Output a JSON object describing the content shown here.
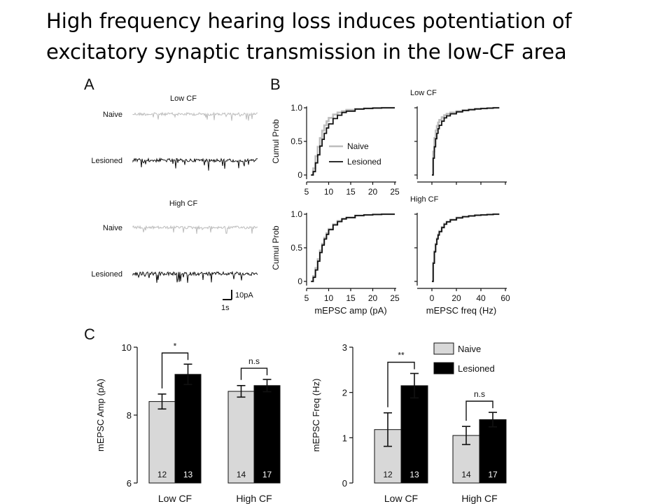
{
  "slide": {
    "title_line1": "High frequency hearing loss induces potentiation of",
    "title_line2": "excitatory synaptic transmission in the low-CF area"
  },
  "colors": {
    "naive": "#bdbdbd",
    "lesioned": "#111111",
    "bar_naive": "#d8d8d8",
    "bar_lesioned": "#000000"
  },
  "panels": {
    "A": {
      "letter": "A",
      "groups": [
        {
          "title": "Low CF",
          "traces": [
            "Naive",
            "Lesioned"
          ]
        },
        {
          "title": "High CF",
          "traces": [
            "Naive",
            "Lesioned"
          ]
        }
      ],
      "scalebar": {
        "amp_label": "10pA",
        "time_label": "1s"
      }
    },
    "B": {
      "letter": "B"
    },
    "C": {
      "letter": "C"
    }
  },
  "chart_data": [
    {
      "type": "line",
      "panel": "B",
      "row_label": "Low CF",
      "xlim": [
        5,
        25
      ],
      "ylim": [
        0,
        1
      ],
      "xticks": [
        5,
        10,
        15,
        20,
        25
      ],
      "yticks": [
        "0",
        "0.5",
        "1.0"
      ],
      "ylabel": "Cumul Prob",
      "legend": [
        "Naive",
        "Lesioned"
      ],
      "legend_position": "lower-right",
      "series": [
        {
          "name": "Naive",
          "color": "naive",
          "x": [
            6,
            6.5,
            7,
            7.5,
            8,
            8.5,
            9,
            9.5,
            10,
            11,
            12,
            13,
            14,
            16,
            18,
            20,
            22,
            24,
            25
          ],
          "y": [
            0,
            0.1,
            0.28,
            0.42,
            0.55,
            0.66,
            0.74,
            0.8,
            0.85,
            0.9,
            0.93,
            0.95,
            0.97,
            0.985,
            0.993,
            0.997,
            1,
            1,
            1
          ]
        },
        {
          "name": "Lesioned",
          "color": "lesioned",
          "x": [
            6,
            6.5,
            7,
            7.5,
            8,
            8.5,
            9,
            9.5,
            10,
            11,
            12,
            13,
            14,
            16,
            18,
            20,
            22,
            24,
            25
          ],
          "y": [
            0,
            0.05,
            0.18,
            0.3,
            0.43,
            0.53,
            0.62,
            0.7,
            0.76,
            0.84,
            0.89,
            0.93,
            0.95,
            0.98,
            0.99,
            0.996,
            1,
            1,
            1
          ]
        }
      ]
    },
    {
      "type": "line",
      "panel": "B",
      "row_label": "Low CF",
      "xlim": [
        0,
        60
      ],
      "ylim": [
        0,
        1
      ],
      "series": [
        {
          "name": "Naive",
          "color": "naive",
          "x": [
            0,
            1,
            2,
            3,
            4,
            5,
            6,
            8,
            10,
            12,
            15,
            20,
            25,
            30,
            35,
            40,
            45,
            50,
            55
          ],
          "y": [
            0,
            0.35,
            0.55,
            0.66,
            0.73,
            0.78,
            0.82,
            0.86,
            0.89,
            0.91,
            0.93,
            0.95,
            0.965,
            0.975,
            0.985,
            0.99,
            0.995,
            1,
            1
          ]
        },
        {
          "name": "Lesioned",
          "color": "lesioned",
          "x": [
            0,
            1,
            2,
            3,
            4,
            5,
            6,
            8,
            10,
            12,
            15,
            20,
            25,
            30,
            35,
            40,
            45,
            50,
            55
          ],
          "y": [
            0,
            0.25,
            0.42,
            0.54,
            0.62,
            0.69,
            0.74,
            0.8,
            0.85,
            0.88,
            0.91,
            0.94,
            0.96,
            0.972,
            0.982,
            0.99,
            0.995,
            1,
            1
          ]
        }
      ]
    },
    {
      "type": "line",
      "panel": "B",
      "row_label": "High CF",
      "xlim": [
        5,
        25
      ],
      "ylim": [
        0,
        1
      ],
      "xticks": [
        5,
        10,
        15,
        20,
        25
      ],
      "yticks": [
        "0",
        "0.5",
        "1.0"
      ],
      "ylabel": "Cumul Prob",
      "xlabel": "mEPSC amp (pA)",
      "series": [
        {
          "name": "Naive",
          "color": "naive",
          "x": [
            6,
            6.5,
            7,
            7.5,
            8,
            8.5,
            9,
            9.5,
            10,
            11,
            12,
            13,
            14,
            16,
            18,
            20,
            22,
            24,
            25
          ],
          "y": [
            0,
            0.08,
            0.2,
            0.33,
            0.46,
            0.56,
            0.65,
            0.72,
            0.78,
            0.85,
            0.9,
            0.93,
            0.95,
            0.98,
            0.99,
            0.996,
            1,
            1,
            1
          ]
        },
        {
          "name": "Lesioned",
          "color": "lesioned",
          "x": [
            6,
            6.5,
            7,
            7.5,
            8,
            8.5,
            9,
            9.5,
            10,
            11,
            12,
            13,
            14,
            16,
            18,
            20,
            22,
            24,
            25
          ],
          "y": [
            0,
            0.06,
            0.17,
            0.3,
            0.43,
            0.54,
            0.63,
            0.7,
            0.77,
            0.84,
            0.89,
            0.93,
            0.95,
            0.98,
            0.99,
            0.996,
            1,
            1,
            1
          ]
        }
      ]
    },
    {
      "type": "line",
      "panel": "B",
      "row_label": "High CF",
      "xlim": [
        0,
        60
      ],
      "ylim": [
        0,
        1
      ],
      "xticks": [
        0,
        20,
        40,
        60
      ],
      "xlabel": "mEPSC freq (Hz)",
      "series": [
        {
          "name": "Naive",
          "color": "naive",
          "x": [
            0,
            1,
            2,
            3,
            4,
            5,
            6,
            8,
            10,
            12,
            15,
            20,
            25,
            30,
            35,
            40,
            45,
            50,
            55
          ],
          "y": [
            0,
            0.28,
            0.45,
            0.56,
            0.64,
            0.7,
            0.75,
            0.81,
            0.86,
            0.89,
            0.92,
            0.95,
            0.965,
            0.975,
            0.985,
            0.99,
            0.995,
            1,
            1
          ]
        },
        {
          "name": "Lesioned",
          "color": "lesioned",
          "x": [
            0,
            1,
            2,
            3,
            4,
            5,
            6,
            8,
            10,
            12,
            15,
            20,
            25,
            30,
            35,
            40,
            45,
            50,
            55
          ],
          "y": [
            0,
            0.27,
            0.44,
            0.55,
            0.63,
            0.69,
            0.74,
            0.8,
            0.85,
            0.885,
            0.915,
            0.945,
            0.962,
            0.974,
            0.984,
            0.99,
            0.995,
            1,
            1
          ]
        }
      ]
    },
    {
      "type": "bar",
      "panel": "C",
      "categories": [
        "Low CF",
        "High CF"
      ],
      "ylabel": "mEPSC Amp (pA)",
      "ylim": [
        6,
        10
      ],
      "yticks": [
        6,
        8,
        10
      ],
      "series": [
        {
          "name": "Naive",
          "values": [
            8.4,
            8.7
          ],
          "errors": [
            0.22,
            0.17
          ],
          "n": [
            "12",
            "14"
          ]
        },
        {
          "name": "Lesioned",
          "values": [
            9.2,
            8.87
          ],
          "errors": [
            0.3,
            0.18
          ],
          "n": [
            "13",
            "17"
          ]
        }
      ],
      "significance": [
        "*",
        "n.s"
      ]
    },
    {
      "type": "bar",
      "panel": "C",
      "categories": [
        "Low CF",
        "High CF"
      ],
      "ylabel": "mEPSC Freq (Hz)",
      "ylim": [
        0,
        3
      ],
      "yticks": [
        0,
        1,
        2,
        3
      ],
      "legend": [
        "Naive",
        "Lesioned"
      ],
      "legend_position": "top-right",
      "series": [
        {
          "name": "Naive",
          "values": [
            1.18,
            1.05
          ],
          "errors": [
            0.37,
            0.2
          ],
          "n": [
            "12",
            "14"
          ]
        },
        {
          "name": "Lesioned",
          "values": [
            2.15,
            1.4
          ],
          "errors": [
            0.27,
            0.16
          ],
          "n": [
            "13",
            "17"
          ]
        }
      ],
      "significance": [
        "**",
        "n.s"
      ]
    }
  ]
}
